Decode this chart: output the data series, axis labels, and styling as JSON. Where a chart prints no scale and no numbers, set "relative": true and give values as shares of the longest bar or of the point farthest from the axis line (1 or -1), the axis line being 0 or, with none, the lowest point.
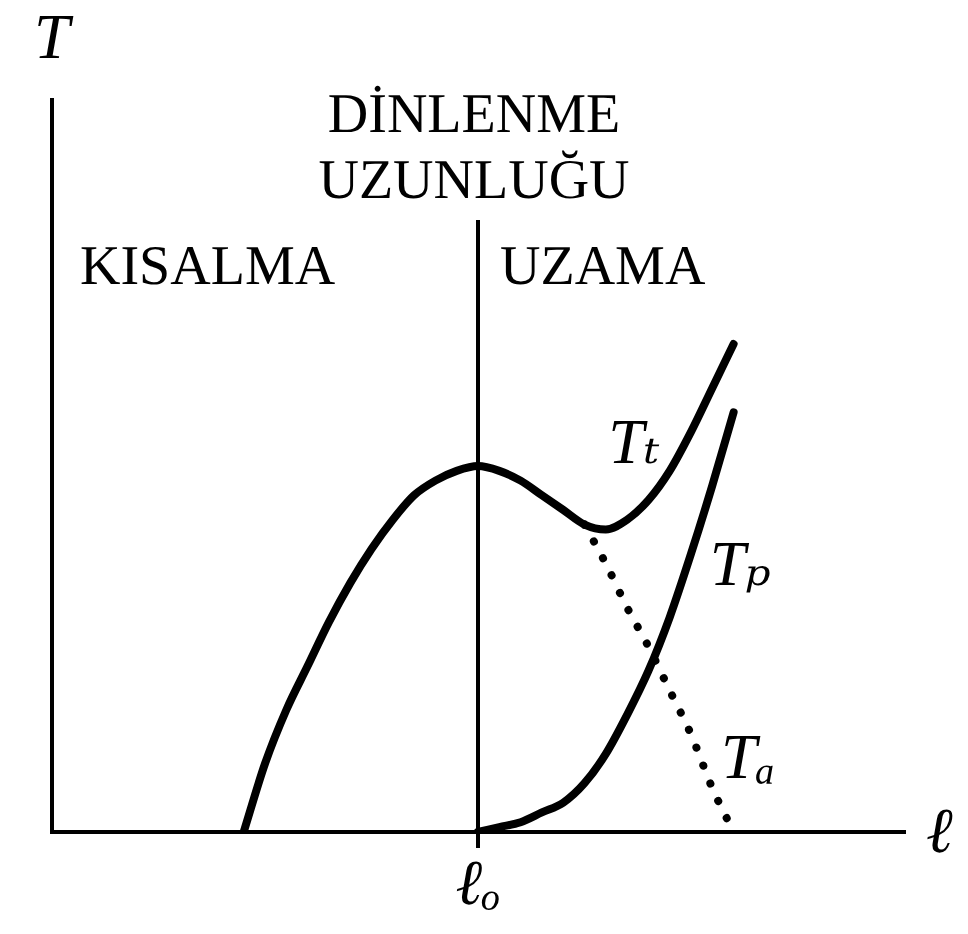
{
  "chart_data": {
    "type": "line",
    "relative": true,
    "xlabel": "ℓ",
    "ylabel": "T",
    "categories": [
      null,
      null,
      null,
      null,
      null,
      null,
      null,
      null,
      null,
      null,
      null,
      null,
      null,
      null,
      null,
      null,
      null,
      null,
      null,
      null,
      null,
      null,
      null,
      null,
      null,
      null,
      null,
      null,
      null,
      null,
      null,
      null,
      null,
      null,
      null,
      null,
      null,
      null,
      null,
      null,
      null
    ],
    "series": [
      {
        "name": "Tₜ",
        "color": "#000000",
        "values": [
          null,
          null,
          null,
          null,
          null,
          null,
          null,
          null,
          null,
          0,
          0.14,
          0.25,
          0.34,
          0.43,
          0.51,
          0.58,
          0.64,
          0.69,
          0.72,
          0.74,
          0.75,
          0.74,
          0.72,
          0.69,
          0.66,
          0.63,
          0.62,
          0.64,
          0.68,
          0.74,
          0.82,
          0.91,
          1,
          null,
          null,
          null,
          null,
          null,
          null,
          null,
          null
        ]
      },
      {
        "name": "Tₚ",
        "color": "#000000",
        "values": [
          null,
          null,
          null,
          null,
          null,
          null,
          null,
          null,
          null,
          null,
          null,
          null,
          null,
          null,
          null,
          null,
          null,
          null,
          null,
          null,
          0,
          0.01,
          0.02,
          0.04,
          0.06,
          0.1,
          0.16,
          0.24,
          0.33,
          0.44,
          0.57,
          0.71,
          0.86,
          null,
          null,
          null,
          null,
          null,
          null,
          null,
          null
        ]
      },
      {
        "name": "Tₐ",
        "color": "#000000",
        "line_style": "dotted",
        "values": [
          null,
          null,
          null,
          null,
          null,
          null,
          null,
          null,
          null,
          null,
          null,
          null,
          null,
          null,
          null,
          null,
          null,
          null,
          null,
          null,
          null,
          null,
          null,
          null,
          null,
          0.63,
          0.55,
          0.46,
          0.38,
          0.29,
          0.2,
          0.09,
          0,
          null,
          null,
          null,
          null,
          null,
          null,
          null,
          null
        ]
      }
    ],
    "ref_lines": [
      {
        "axis": "x",
        "label": "DİNLENME UZUNLUĞU"
      }
    ],
    "annotations": [
      "KISALMA",
      "UZAMA",
      "ℓₒ"
    ]
  }
}
